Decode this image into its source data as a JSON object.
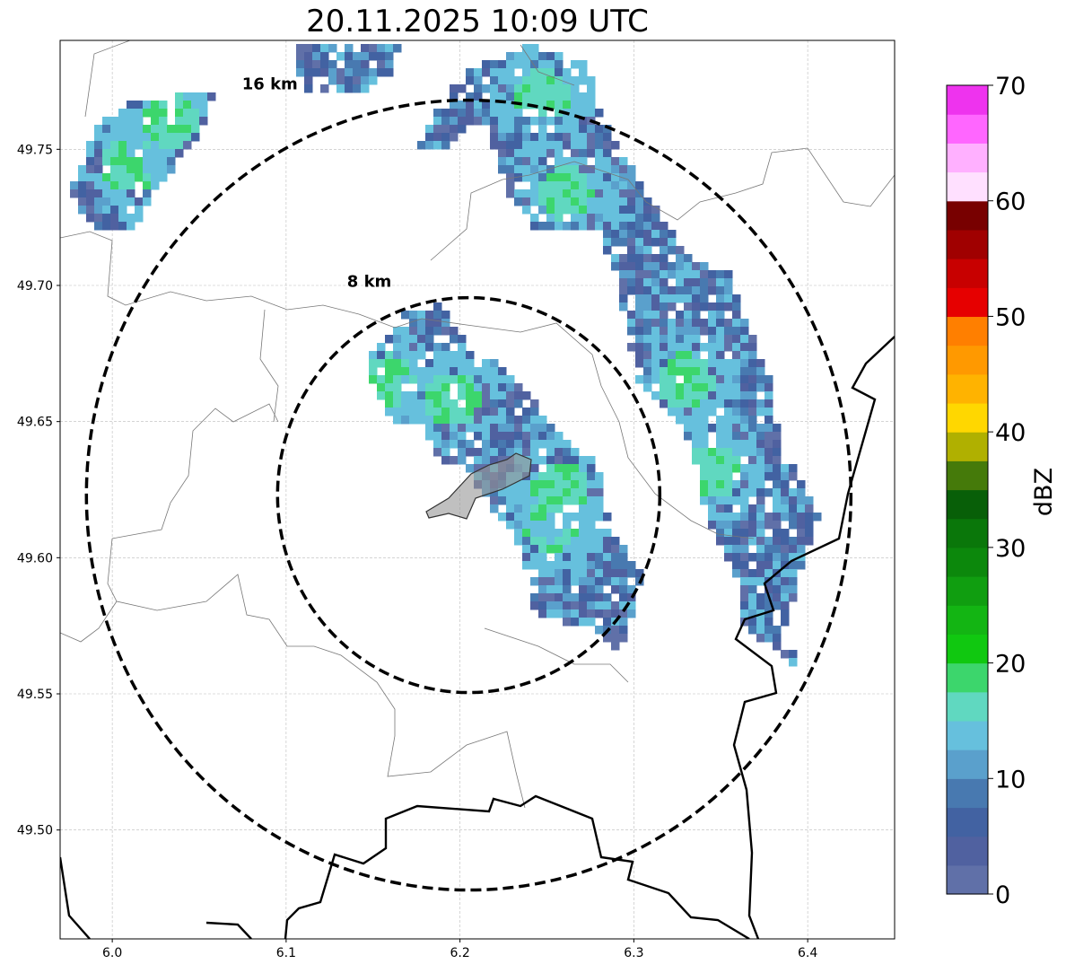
{
  "chart_data": {
    "type": "heatmap",
    "title": "20.11.2025 10:09 UTC",
    "xlim": [
      5.97,
      6.45
    ],
    "ylim": [
      49.46,
      49.79
    ],
    "xticks": [
      "6.0",
      "6.1",
      "6.2",
      "6.3",
      "6.4"
    ],
    "xtick_values": [
      6.0,
      6.1,
      6.2,
      6.3,
      6.4
    ],
    "yticks": [
      "49.50",
      "49.55",
      "49.60",
      "49.65",
      "49.70",
      "49.75"
    ],
    "ytick_values": [
      49.5,
      49.55,
      49.6,
      49.65,
      49.7,
      49.75
    ],
    "grid": true,
    "range_rings": [
      {
        "label": "8 km",
        "radius_km": 8
      },
      {
        "label": "16 km",
        "radius_km": 16
      }
    ],
    "ring_center": {
      "lon": 6.205,
      "lat": 49.623
    },
    "colorbar": {
      "label": "dBZ",
      "min": 0,
      "max": 70,
      "step": 2.5,
      "ticks": [
        "0",
        "10",
        "20",
        "30",
        "40",
        "50",
        "60",
        "70"
      ],
      "tick_values": [
        0,
        10,
        20,
        30,
        40,
        50,
        60,
        70
      ],
      "colors": [
        "#6070a8",
        "#5061a0",
        "#4262a2",
        "#4879b0",
        "#5aa0cc",
        "#66c0dd",
        "#60d8c0",
        "#3cd66c",
        "#10c810",
        "#13b513",
        "#109e10",
        "#0c880c",
        "#0a770a",
        "#085f08",
        "#457a0a",
        "#b0b000",
        "#ffd700",
        "#ffb300",
        "#ff9900",
        "#ff7f00",
        "#e60000",
        "#c80000",
        "#a00000",
        "#780000",
        "#ffe0ff",
        "#ffb0ff",
        "#ff66ff",
        "#ee33ee"
      ]
    }
  }
}
